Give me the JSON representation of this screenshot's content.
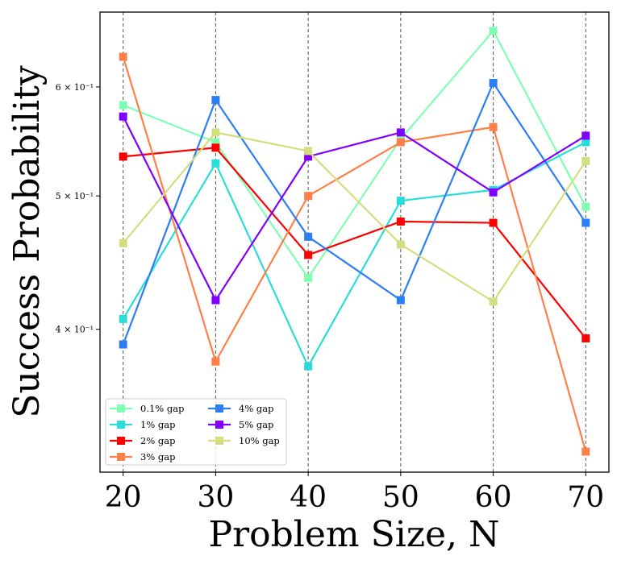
{
  "chart_data": {
    "type": "line",
    "title": "",
    "xlabel": "Problem Size, N",
    "ylabel": "Success Probability",
    "x": [
      20,
      30,
      40,
      50,
      60,
      70
    ],
    "xlim": [
      17.5,
      72.5
    ],
    "ylim": [
      0.315,
      0.68
    ],
    "yscale": "log",
    "xtick_labels": [
      "20",
      "30",
      "40",
      "50",
      "60",
      "70"
    ],
    "ytick_values": [
      0.6,
      0.5,
      0.4
    ],
    "ytick_labels": [
      "6 × 10⁻¹",
      "5 × 10⁻¹",
      "4 × 10⁻¹"
    ],
    "vertical_gridlines": "dashed at each x tick",
    "legend_position": "lower-left",
    "legend_columns": 2,
    "marker": "square",
    "series": [
      {
        "name": "0.1% gap",
        "color": "#80ffb4",
        "values": [
          0.582,
          0.547,
          0.436,
          0.55,
          0.659,
          0.491
        ]
      },
      {
        "name": "1% gap",
        "color": "#2adddd",
        "values": [
          0.407,
          0.528,
          0.376,
          0.496,
          0.505,
          0.547
        ]
      },
      {
        "name": "2% gap",
        "color": "#ff0000",
        "values": [
          0.534,
          0.542,
          0.453,
          0.479,
          0.478,
          0.394
        ]
      },
      {
        "name": "3% gap",
        "color": "#ff7f48",
        "values": [
          0.631,
          0.379,
          0.5,
          0.547,
          0.561,
          0.326
        ]
      },
      {
        "name": "4% gap",
        "color": "#2c7ef7",
        "values": [
          0.39,
          0.587,
          0.467,
          0.42,
          0.604,
          0.478
        ]
      },
      {
        "name": "5% gap",
        "color": "#8000ff",
        "values": [
          0.571,
          0.42,
          0.534,
          0.556,
          0.503,
          0.553
        ]
      },
      {
        "name": "10% gap",
        "color": "#d4dd80",
        "values": [
          0.462,
          0.556,
          0.539,
          0.461,
          0.419,
          0.53
        ]
      }
    ]
  }
}
